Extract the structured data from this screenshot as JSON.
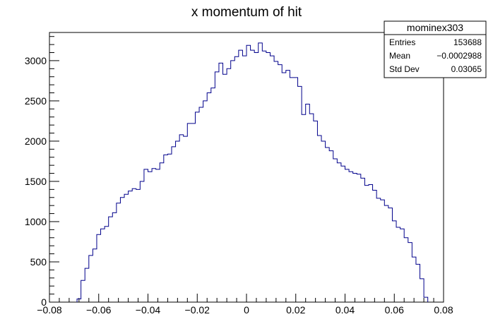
{
  "chart_data": {
    "type": "bar",
    "title": "x momentum of hit",
    "xlabel": "",
    "ylabel": "",
    "xlim": [
      -0.08,
      0.08
    ],
    "ylim": [
      0,
      3350
    ],
    "x_ticks": [
      -0.08,
      -0.06,
      -0.04,
      -0.02,
      0,
      0.02,
      0.04,
      0.06,
      0.08
    ],
    "x_tick_labels": [
      "−0.08",
      "−0.06",
      "−0.04",
      "−0.02",
      "0",
      "0.02",
      "0.04",
      "0.06",
      "0.08"
    ],
    "y_ticks": [
      0,
      500,
      1000,
      1500,
      2000,
      2500,
      3000
    ],
    "y_tick_labels": [
      "0",
      "500",
      "1000",
      "1500",
      "2000",
      "2500",
      "3000"
    ],
    "bin_width": 0.0016,
    "bin_start": -0.0688,
    "values": [
      40,
      270,
      420,
      580,
      660,
      840,
      910,
      940,
      1060,
      1110,
      1230,
      1300,
      1340,
      1380,
      1410,
      1400,
      1500,
      1650,
      1620,
      1660,
      1650,
      1730,
      1830,
      1840,
      1930,
      2000,
      2080,
      2060,
      2220,
      2220,
      2360,
      2420,
      2500,
      2600,
      2660,
      2860,
      2970,
      2830,
      2900,
      3000,
      3050,
      3130,
      3060,
      3190,
      3130,
      3100,
      3220,
      3120,
      3100,
      3060,
      2990,
      2950,
      2850,
      2880,
      2790,
      2790,
      2680,
      2330,
      2460,
      2340,
      2250,
      2070,
      2000,
      1920,
      1880,
      1780,
      1730,
      1690,
      1650,
      1620,
      1600,
      1590,
      1540,
      1450,
      1460,
      1390,
      1290,
      1270,
      1200,
      1170,
      1010,
      930,
      910,
      800,
      740,
      560,
      470,
      290,
      60
    ],
    "line_color": "#00008b",
    "stats_box": {
      "name": "mominex303",
      "rows": [
        {
          "key": "Entries",
          "value": "153688"
        },
        {
          "key": "Mean",
          "value": "−0.0002988"
        },
        {
          "key": "Std Dev",
          "value": "0.03065"
        }
      ]
    }
  }
}
